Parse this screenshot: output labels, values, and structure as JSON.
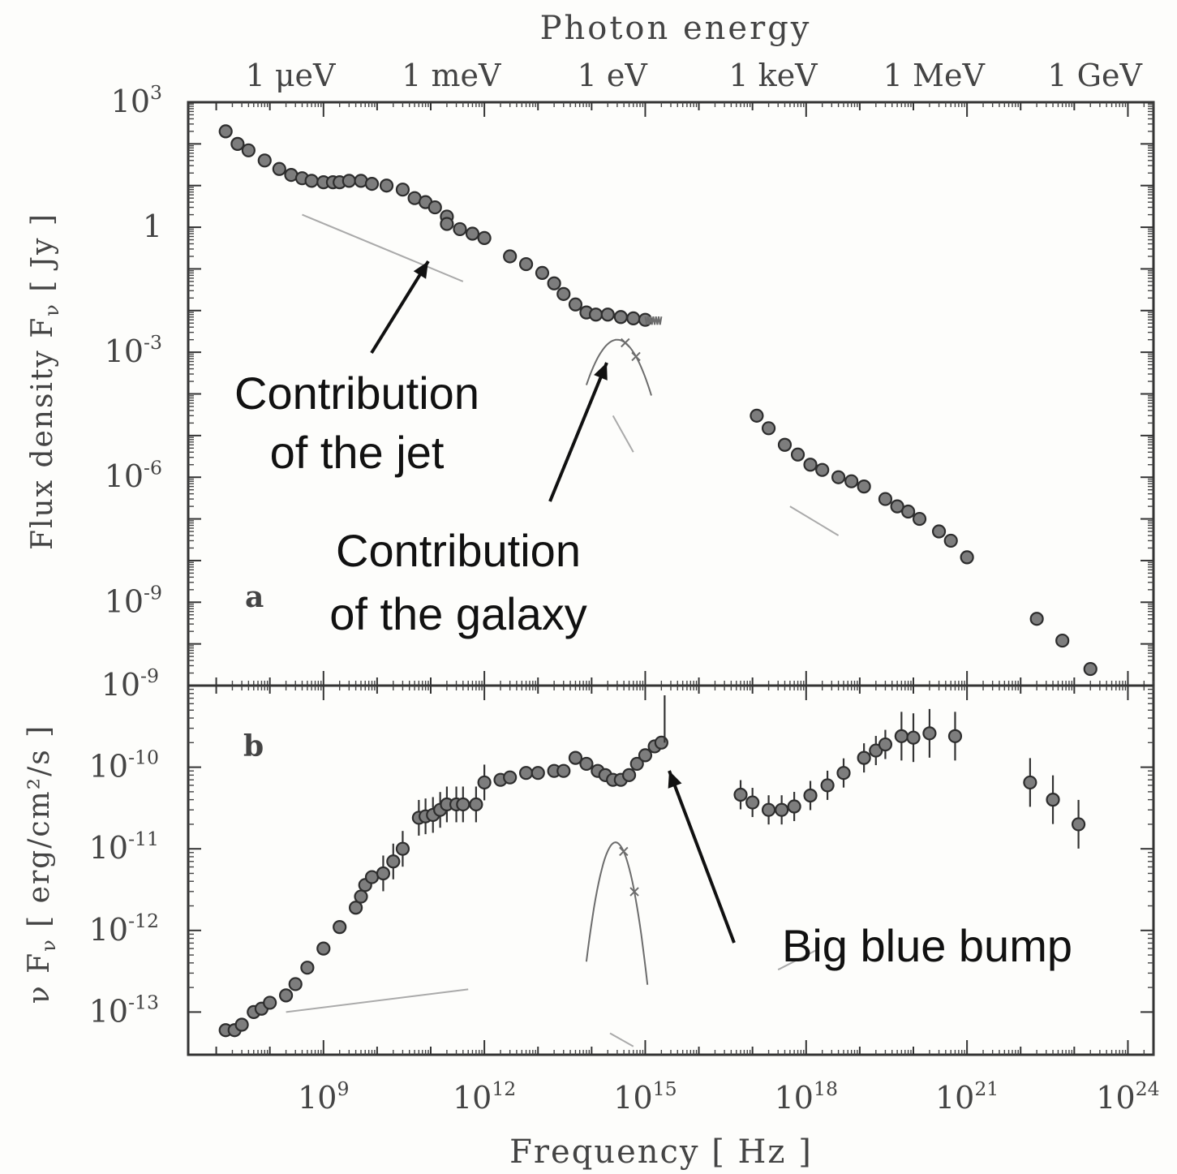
{
  "chart_data": [
    {
      "type": "scatter",
      "panel_label": "a",
      "xlabel": "Frequency [ Hz ]",
      "ylabel": "Flux density F",
      "ylabel_sub": "ν",
      "ylabel_unit": " [ Jy ]",
      "top_axis_title": "Photon energy",
      "top_ticks": [
        {
          "label": "1 μeV",
          "x": 241800000.0
        },
        {
          "label": "1 meV",
          "x": 241800000000.0
        },
        {
          "label": "1 eV",
          "x": 241800000000000.0
        },
        {
          "label": "1 keV",
          "x": 2.418e+17
        },
        {
          "label": "1 MeV",
          "x": 2.418e+20
        },
        {
          "label": "1 GeV",
          "x": 2.418e+23
        }
      ],
      "xscale": "log",
      "yscale": "log",
      "xlim": [
        3000000.0,
        3e+24
      ],
      "ylim": [
        1e-11,
        1000.0
      ],
      "y_ticks": [
        {
          "b": "10",
          "e": "3",
          "v": 1000.0
        },
        {
          "b": "1",
          "e": "",
          "v": 1
        },
        {
          "b": "10",
          "e": "-3",
          "v": 0.001
        },
        {
          "b": "10",
          "e": "-6",
          "v": 1e-06
        },
        {
          "b": "10",
          "e": "-9",
          "v": 1e-09
        }
      ],
      "points": [
        [
          15000000.0,
          200
        ],
        [
          25000000.0,
          100
        ],
        [
          40000000.0,
          70
        ],
        [
          80000000.0,
          40
        ],
        [
          150000000.0,
          25
        ],
        [
          250000000.0,
          18
        ],
        [
          400000000.0,
          15
        ],
        [
          600000000.0,
          13
        ],
        [
          1000000000.0,
          12
        ],
        [
          1500000000.0,
          12
        ],
        [
          2000000000.0,
          12
        ],
        [
          3000000000.0,
          13
        ],
        [
          5000000000.0,
          13
        ],
        [
          8000000000.0,
          11
        ],
        [
          15000000000.0,
          10
        ],
        [
          30000000000.0,
          8
        ],
        [
          50000000000.0,
          5
        ],
        [
          80000000000.0,
          4
        ],
        [
          120000000000.0,
          3
        ],
        [
          200000000000.0,
          1.8
        ],
        [
          200000000000.0,
          1.2
        ],
        [
          350000000000.0,
          0.9
        ],
        [
          600000000000.0,
          0.7
        ],
        [
          1000000000000.0,
          0.55
        ],
        [
          3000000000000.0,
          0.2
        ],
        [
          6000000000000.0,
          0.13
        ],
        [
          12000000000000.0,
          0.08
        ],
        [
          20000000000000.0,
          0.045
        ],
        [
          30000000000000.0,
          0.025
        ],
        [
          50000000000000.0,
          0.014
        ],
        [
          80000000000000.0,
          0.009
        ],
        [
          120000000000000.0,
          0.008
        ],
        [
          200000000000000.0,
          0.008
        ],
        [
          350000000000000.0,
          0.007
        ],
        [
          600000000000000.0,
          0.0065
        ],
        [
          1000000000000000.0,
          0.006
        ],
        [
          1.2e+17,
          3e-05
        ],
        [
          2e+17,
          1.5e-05
        ],
        [
          4e+17,
          6e-06
        ],
        [
          7e+17,
          3.5e-06
        ],
        [
          1.2e+18,
          2e-06
        ],
        [
          2e+18,
          1.5e-06
        ],
        [
          4e+18,
          1e-06
        ],
        [
          7e+18,
          8e-07
        ],
        [
          1.2e+19,
          6e-07
        ],
        [
          3e+19,
          3e-07
        ],
        [
          5e+19,
          2e-07
        ],
        [
          8e+19,
          1.5e-07
        ],
        [
          1.3e+20,
          1e-07
        ],
        [
          3e+20,
          5e-08
        ],
        [
          5e+20,
          3e-08
        ],
        [
          1e+21,
          1.2e-08
        ],
        [
          2e+22,
          4e-10
        ],
        [
          6e+22,
          1.2e-10
        ],
        [
          2e+23,
          2.5e-11
        ]
      ],
      "flat_xmax": 2000000000000000.0,
      "jet_component": [
        [
          400000000.0,
          2
        ],
        [
          400000000000.0,
          0.05
        ]
      ],
      "galaxy_peak_x": 300000000000000.0,
      "galaxy_peak_y": 0.002,
      "galaxy_xrange": [
        80000000000000.0,
        1300000000000000.0
      ],
      "galaxy_dim": [
        [
          250000000000000.0,
          3e-05
        ],
        [
          600000000000000.0,
          4e-06
        ]
      ],
      "galaxy_hi_component": [
        [
          5e+17,
          2e-07
        ],
        [
          4e+18,
          4e-08
        ]
      ],
      "annotations": [
        {
          "text": [
            "Contribution",
            "of the jet"
          ]
        },
        {
          "text": [
            "Contribution",
            "of the galaxy"
          ]
        }
      ]
    },
    {
      "type": "scatter",
      "panel_label": "b",
      "xlabel": "Frequency [ Hz ]",
      "ylabel": "ν F",
      "ylabel_sub": "ν",
      "ylabel_unit": " [ erg/cm²/s ]",
      "xscale": "log",
      "yscale": "log",
      "xlim": [
        3000000.0,
        3e+24
      ],
      "ylim": [
        3e-14,
        1e-09
      ],
      "x_ticks": [
        {
          "b": "10",
          "e": "9",
          "v": 1000000000.0
        },
        {
          "b": "10",
          "e": "12",
          "v": 1000000000000.0
        },
        {
          "b": "10",
          "e": "15",
          "v": 1000000000000000.0
        },
        {
          "b": "10",
          "e": "18",
          "v": 1e+18
        },
        {
          "b": "10",
          "e": "21",
          "v": 1e+21
        },
        {
          "b": "10",
          "e": "24",
          "v": 1e+24
        }
      ],
      "y_ticks": [
        {
          "b": "10",
          "e": "-9",
          "v": 1e-09
        },
        {
          "b": "10",
          "e": "-10",
          "v": 1e-10
        },
        {
          "b": "10",
          "e": "-11",
          "v": 1e-11
        },
        {
          "b": "10",
          "e": "-12",
          "v": 1e-12
        },
        {
          "b": "10",
          "e": "-13",
          "v": 1e-13
        }
      ],
      "points": [
        [
          15000000.0,
          6e-14
        ],
        [
          22000000.0,
          6e-14
        ],
        [
          30000000.0,
          7e-14
        ],
        [
          50000000.0,
          1e-13
        ],
        [
          70000000.0,
          1.1e-13
        ],
        [
          100000000.0,
          1.3e-13
        ],
        [
          200000000.0,
          1.6e-13
        ],
        [
          300000000.0,
          2.2e-13
        ],
        [
          500000000.0,
          3.5e-13
        ],
        [
          1000000000.0,
          6e-13
        ],
        [
          2000000000.0,
          1.1e-12
        ],
        [
          4000000000.0,
          1.9e-12
        ],
        [
          5000000000.0,
          2.6e-12
        ],
        [
          6000000000.0,
          3.6e-12
        ],
        [
          8000000000.0,
          4.5e-12
        ],
        [
          13000000000.0,
          5e-12
        ],
        [
          20000000000.0,
          7e-12
        ],
        [
          30000000000.0,
          1e-11
        ],
        [
          60000000000.0,
          2.4e-11
        ],
        [
          80000000000.0,
          2.5e-11
        ],
        [
          110000000000.0,
          2.6e-11
        ],
        [
          150000000000.0,
          3e-11
        ],
        [
          200000000000.0,
          3.5e-11
        ],
        [
          300000000000.0,
          3.5e-11
        ],
        [
          400000000000.0,
          3.5e-11
        ],
        [
          700000000000.0,
          3.5e-11
        ],
        [
          1000000000000.0,
          6.5e-11
        ],
        [
          2000000000000.0,
          7e-11
        ],
        [
          3000000000000.0,
          7.5e-11
        ],
        [
          6000000000000.0,
          8.5e-11
        ],
        [
          10000000000000.0,
          8.5e-11
        ],
        [
          20000000000000.0,
          9e-11
        ],
        [
          30000000000000.0,
          9e-11
        ],
        [
          50000000000000.0,
          1.3e-10
        ],
        [
          80000000000000.0,
          1.1e-10
        ],
        [
          130000000000000.0,
          9e-11
        ],
        [
          180000000000000.0,
          8e-11
        ],
        [
          250000000000000.0,
          7e-11
        ],
        [
          350000000000000.0,
          7e-11
        ],
        [
          500000000000000.0,
          8e-11
        ],
        [
          700000000000000.0,
          1.1e-10
        ],
        [
          1000000000000000.0,
          1.4e-10
        ],
        [
          1500000000000000.0,
          1.8e-10
        ],
        [
          2000000000000000.0,
          2e-10
        ],
        [
          6e+16,
          4.6e-11
        ],
        [
          1e+17,
          3.7e-11
        ],
        [
          2e+17,
          3e-11
        ],
        [
          3.5e+17,
          3e-11
        ],
        [
          6e+17,
          3.3e-11
        ],
        [
          1.2e+18,
          4.5e-11
        ],
        [
          2.5e+18,
          6e-11
        ],
        [
          5e+18,
          8.5e-11
        ],
        [
          1.2e+19,
          1.3e-10
        ],
        [
          2e+19,
          1.6e-10
        ],
        [
          3e+19,
          1.9e-10
        ],
        [
          6e+19,
          2.4e-10
        ],
        [
          1e+20,
          2.3e-10
        ],
        [
          2e+20,
          2.6e-10
        ],
        [
          6e+20,
          2.4e-10
        ],
        [
          1.5e+22,
          6.5e-11
        ],
        [
          4e+22,
          4e-11
        ],
        [
          1.2e+23,
          2e-11
        ]
      ],
      "spike_x": 2300000000000000.0,
      "jet_component": [
        [
          200000000.0,
          1e-13
        ],
        [
          500000000000.0,
          1.9e-13
        ]
      ],
      "galaxy_peak_x": 280000000000000.0,
      "galaxy_peak_y": 1.2e-11,
      "galaxy_xrange": [
        80000000000000.0,
        1100000000000000.0
      ],
      "galaxy_dim": [
        [
          220000000000000.0,
          5.5e-14
        ],
        [
          600000000000000.0,
          3.8e-14
        ]
      ],
      "galaxy_hi_component": [
        [
          3e+17,
          3.3e-13
        ],
        [
          1.6e+18,
          5.8e-13
        ]
      ],
      "annotations": [
        {
          "text": [
            "Big blue bump"
          ]
        }
      ]
    }
  ]
}
